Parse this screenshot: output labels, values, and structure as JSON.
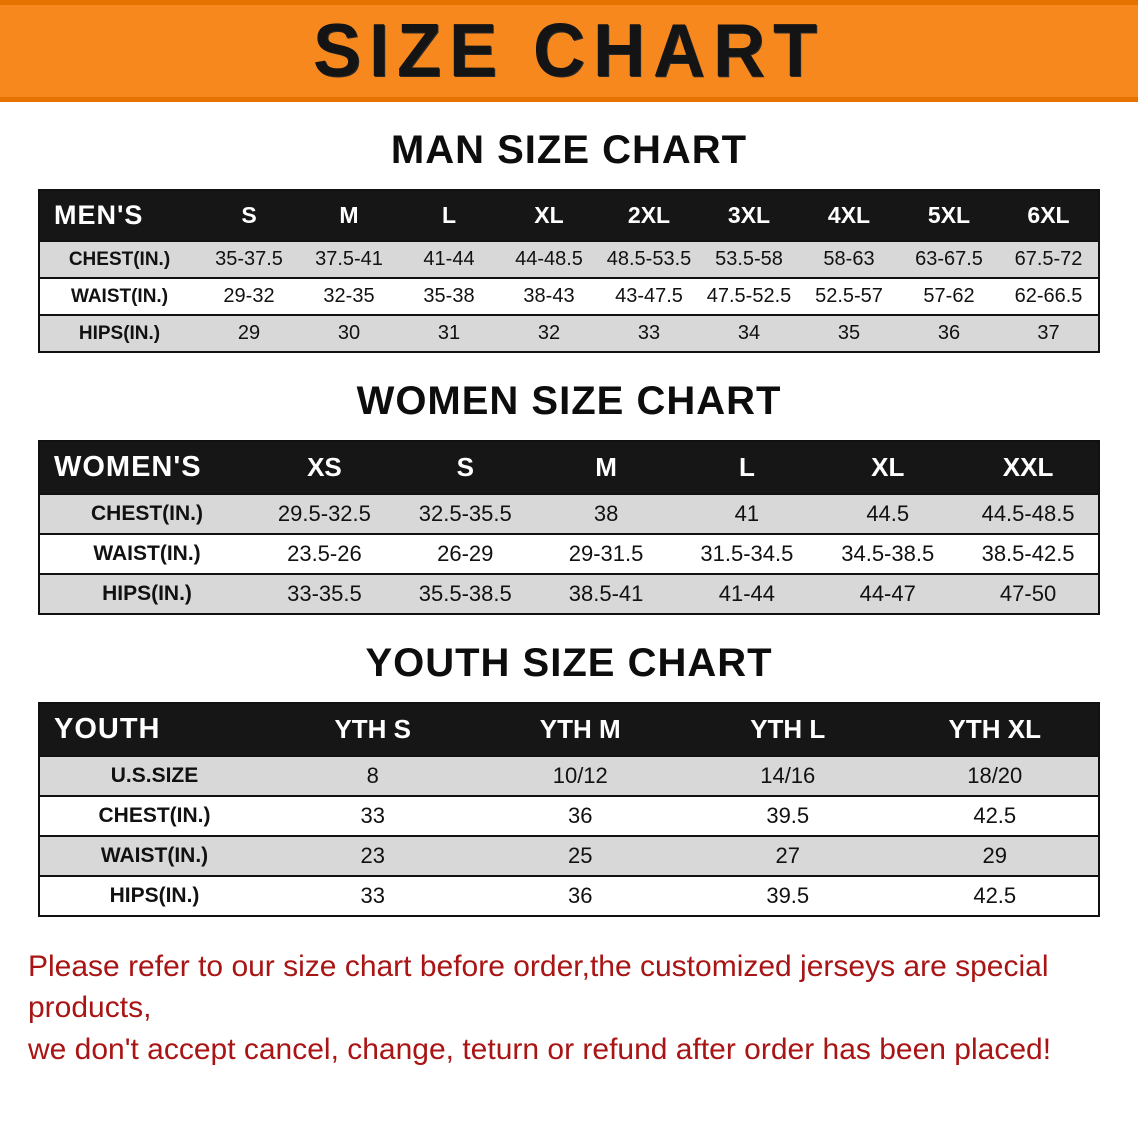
{
  "banner": {
    "title": "SIZE CHART",
    "bg_color": "#f6881d",
    "text_color": "#141414"
  },
  "sections": [
    {
      "heading": "MAN SIZE CHART",
      "table": {
        "header_label": "MEN'S",
        "sizes": [
          "S",
          "M",
          "L",
          "XL",
          "2XL",
          "3XL",
          "4XL",
          "5XL",
          "6XL"
        ],
        "rows": [
          {
            "label": "CHEST(IN.)",
            "values": [
              "35-37.5",
              "37.5-41",
              "41-44",
              "44-48.5",
              "48.5-53.5",
              "53.5-58",
              "58-63",
              "63-67.5",
              "67.5-72"
            ]
          },
          {
            "label": "WAIST(IN.)",
            "values": [
              "29-32",
              "32-35",
              "35-38",
              "38-43",
              "43-47.5",
              "47.5-52.5",
              "52.5-57",
              "57-62",
              "62-66.5"
            ]
          },
          {
            "label": "HIPS(IN.)",
            "values": [
              "29",
              "30",
              "31",
              "32",
              "33",
              "34",
              "35",
              "36",
              "37"
            ]
          }
        ]
      }
    },
    {
      "heading": "WOMEN SIZE CHART",
      "table": {
        "header_label": "WOMEN'S",
        "sizes": [
          "XS",
          "S",
          "M",
          "L",
          "XL",
          "XXL"
        ],
        "rows": [
          {
            "label": "CHEST(IN.)",
            "values": [
              "29.5-32.5",
              "32.5-35.5",
              "38",
              "41",
              "44.5",
              "44.5-48.5"
            ]
          },
          {
            "label": "WAIST(IN.)",
            "values": [
              "23.5-26",
              "26-29",
              "29-31.5",
              "31.5-34.5",
              "34.5-38.5",
              "38.5-42.5"
            ]
          },
          {
            "label": "HIPS(IN.)",
            "values": [
              "33-35.5",
              "35.5-38.5",
              "38.5-41",
              "41-44",
              "44-47",
              "47-50"
            ]
          }
        ]
      }
    },
    {
      "heading": "YOUTH SIZE CHART",
      "table": {
        "header_label": "YOUTH",
        "sizes": [
          "YTH S",
          "YTH M",
          "YTH L",
          "YTH XL"
        ],
        "rows": [
          {
            "label": "U.S.SIZE",
            "values": [
              "8",
              "10/12",
              "14/16",
              "18/20"
            ]
          },
          {
            "label": "CHEST(IN.)",
            "values": [
              "33",
              "36",
              "39.5",
              "42.5"
            ]
          },
          {
            "label": "WAIST(IN.)",
            "values": [
              "23",
              "25",
              "27",
              "29"
            ]
          },
          {
            "label": "HIPS(IN.)",
            "values": [
              "33",
              "36",
              "39.5",
              "42.5"
            ]
          }
        ]
      }
    }
  ],
  "footer": {
    "line1": "Please refer to our size chart before order,the customized jerseys are special products,",
    "line2": "we don't accept cancel, change, teturn or refund after order has been placed!"
  }
}
